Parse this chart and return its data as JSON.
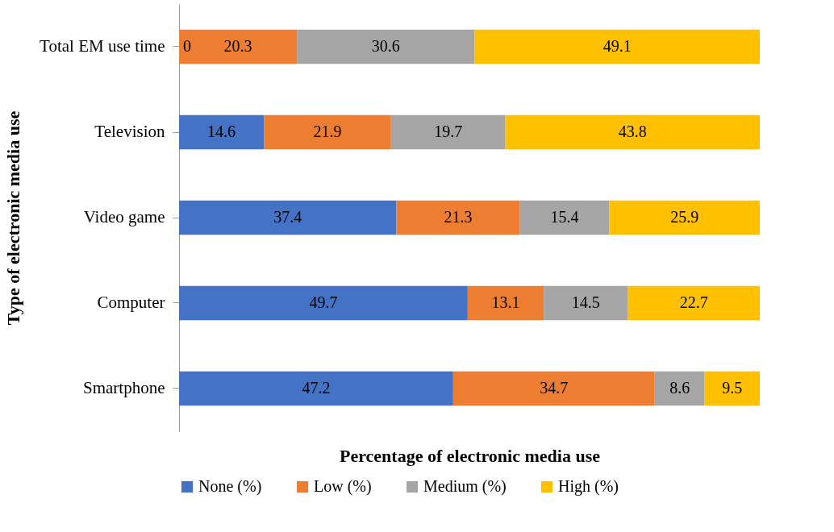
{
  "chart_data": {
    "type": "bar",
    "orientation": "horizontal",
    "stacked": true,
    "data_labels": true,
    "xlabel": "Percentage of electronic media use",
    "ylabel": "Type of electronic media use",
    "categories": [
      "Total EM use time",
      "Television",
      "Video game",
      "Computer",
      "Smartphone"
    ],
    "xlim": [
      0,
      100
    ],
    "annotations": [
      {
        "text": "0",
        "x": 0,
        "y": "Total EM use time"
      }
    ],
    "tick_labels": "y",
    "grid": false,
    "legend": "bottom",
    "series": [
      {
        "name": "None (%)",
        "color": "#4472c4",
        "values": [
          null,
          14.6,
          37.4,
          49.7,
          47.2
        ]
      },
      {
        "name": "Low (%)",
        "color": "#ed7d31",
        "values": [
          20.3,
          21.9,
          21.3,
          13.1,
          34.7
        ]
      },
      {
        "name": "Medium (%)",
        "color": "#a5a5a5",
        "values": [
          30.6,
          19.7,
          15.4,
          14.5,
          8.6
        ]
      },
      {
        "name": "High (%)",
        "color": "#ffc000",
        "values": [
          49.1,
          43.8,
          25.9,
          22.7,
          9.5
        ]
      }
    ]
  }
}
